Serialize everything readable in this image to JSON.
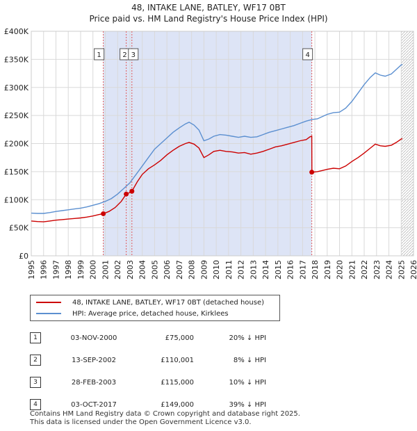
{
  "chart_data": {
    "type": "line",
    "title": "48, INTAKE LANE, BATLEY, WF17 0BT",
    "subtitle": "Price paid vs. HM Land Registry's House Price Index (HPI)",
    "xlabel": "",
    "ylabel": "",
    "xlim": [
      1995,
      2026
    ],
    "ylim": [
      0,
      400000
    ],
    "grid": true,
    "x_ticks": [
      1995,
      1996,
      1997,
      1998,
      1999,
      2000,
      2001,
      2002,
      2003,
      2004,
      2005,
      2006,
      2007,
      2008,
      2009,
      2010,
      2011,
      2012,
      2013,
      2014,
      2015,
      2016,
      2017,
      2018,
      2019,
      2020,
      2021,
      2022,
      2023,
      2024,
      2025,
      2026
    ],
    "y_ticks": [
      {
        "value": 0,
        "label": "£0"
      },
      {
        "value": 50000,
        "label": "£50K"
      },
      {
        "value": 100000,
        "label": "£100K"
      },
      {
        "value": 150000,
        "label": "£150K"
      },
      {
        "value": 200000,
        "label": "£200K"
      },
      {
        "value": 250000,
        "label": "£250K"
      },
      {
        "value": 300000,
        "label": "£300K"
      },
      {
        "value": 350000,
        "label": "£350K"
      },
      {
        "value": 400000,
        "label": "£400K"
      }
    ],
    "series": [
      {
        "name": "48, INTAKE LANE, BATLEY, WF17 0BT (detached house)",
        "color": "#cc0000",
        "points": [
          [
            1995.0,
            62000
          ],
          [
            1995.5,
            61000
          ],
          [
            1996.0,
            60500
          ],
          [
            1996.5,
            62000
          ],
          [
            1997.0,
            63500
          ],
          [
            1997.5,
            64500
          ],
          [
            1998.0,
            65500
          ],
          [
            1998.5,
            66500
          ],
          [
            1999.0,
            67500
          ],
          [
            1999.5,
            69000
          ],
          [
            2000.0,
            71000
          ],
          [
            2000.5,
            73500
          ],
          [
            2000.84,
            75000
          ],
          [
            2001.3,
            79000
          ],
          [
            2001.8,
            86000
          ],
          [
            2002.3,
            97000
          ],
          [
            2002.7,
            110001
          ],
          [
            2002.9,
            112000
          ],
          [
            2003.16,
            115000
          ],
          [
            2003.6,
            132000
          ],
          [
            2004.0,
            145000
          ],
          [
            2004.5,
            155000
          ],
          [
            2005.0,
            162000
          ],
          [
            2005.5,
            170000
          ],
          [
            2006.0,
            180000
          ],
          [
            2006.5,
            188000
          ],
          [
            2007.0,
            195000
          ],
          [
            2007.5,
            200000
          ],
          [
            2007.8,
            202000
          ],
          [
            2008.2,
            199000
          ],
          [
            2008.6,
            192000
          ],
          [
            2009.0,
            175000
          ],
          [
            2009.4,
            180000
          ],
          [
            2009.8,
            186000
          ],
          [
            2010.3,
            188000
          ],
          [
            2010.8,
            186000
          ],
          [
            2011.3,
            185000
          ],
          [
            2011.8,
            183000
          ],
          [
            2012.3,
            184000
          ],
          [
            2012.8,
            181000
          ],
          [
            2013.3,
            183000
          ],
          [
            2013.8,
            186000
          ],
          [
            2014.3,
            190000
          ],
          [
            2014.8,
            194000
          ],
          [
            2015.3,
            196000
          ],
          [
            2015.8,
            199000
          ],
          [
            2016.3,
            202000
          ],
          [
            2016.8,
            205000
          ],
          [
            2017.3,
            207000
          ],
          [
            2017.6,
            212000
          ],
          [
            2017.75,
            213000
          ],
          [
            2017.76,
            149000
          ],
          [
            2018.2,
            150000
          ],
          [
            2018.6,
            152000
          ],
          [
            2019.0,
            154000
          ],
          [
            2019.5,
            156000
          ],
          [
            2020.0,
            155000
          ],
          [
            2020.5,
            160000
          ],
          [
            2021.0,
            168000
          ],
          [
            2021.5,
            175000
          ],
          [
            2022.0,
            183000
          ],
          [
            2022.5,
            192000
          ],
          [
            2022.9,
            199000
          ],
          [
            2023.3,
            196000
          ],
          [
            2023.7,
            195000
          ],
          [
            2024.2,
            197000
          ],
          [
            2024.6,
            202000
          ],
          [
            2025.0,
            208000
          ],
          [
            2025.1,
            209000
          ]
        ]
      },
      {
        "name": "HPI: Average price, detached house, Kirklees",
        "color": "#5b8fd0",
        "points": [
          [
            1995.0,
            76000
          ],
          [
            1995.5,
            75500
          ],
          [
            1996.0,
            75500
          ],
          [
            1996.5,
            77000
          ],
          [
            1997.0,
            79000
          ],
          [
            1997.5,
            80500
          ],
          [
            1998.0,
            82000
          ],
          [
            1998.5,
            83500
          ],
          [
            1999.0,
            85000
          ],
          [
            1999.5,
            87000
          ],
          [
            2000.0,
            90000
          ],
          [
            2000.5,
            93000
          ],
          [
            2001.0,
            97000
          ],
          [
            2001.5,
            102000
          ],
          [
            2002.0,
            110000
          ],
          [
            2002.5,
            120000
          ],
          [
            2003.0,
            130000
          ],
          [
            2003.5,
            145000
          ],
          [
            2004.0,
            160000
          ],
          [
            2004.5,
            175000
          ],
          [
            2005.0,
            190000
          ],
          [
            2005.5,
            200000
          ],
          [
            2006.0,
            210000
          ],
          [
            2006.5,
            220000
          ],
          [
            2007.0,
            228000
          ],
          [
            2007.5,
            235000
          ],
          [
            2007.8,
            238000
          ],
          [
            2008.2,
            233000
          ],
          [
            2008.6,
            224000
          ],
          [
            2009.0,
            205000
          ],
          [
            2009.4,
            208000
          ],
          [
            2009.8,
            213000
          ],
          [
            2010.3,
            216000
          ],
          [
            2010.8,
            215000
          ],
          [
            2011.3,
            213000
          ],
          [
            2011.8,
            211000
          ],
          [
            2012.3,
            213000
          ],
          [
            2012.8,
            211000
          ],
          [
            2013.3,
            212000
          ],
          [
            2013.8,
            216000
          ],
          [
            2014.3,
            220000
          ],
          [
            2014.8,
            223000
          ],
          [
            2015.3,
            226000
          ],
          [
            2015.8,
            229000
          ],
          [
            2016.3,
            232000
          ],
          [
            2016.8,
            236000
          ],
          [
            2017.3,
            240000
          ],
          [
            2017.8,
            243000
          ],
          [
            2018.2,
            244000
          ],
          [
            2018.6,
            248000
          ],
          [
            2019.0,
            252000
          ],
          [
            2019.5,
            255000
          ],
          [
            2020.0,
            256000
          ],
          [
            2020.5,
            263000
          ],
          [
            2021.0,
            275000
          ],
          [
            2021.5,
            290000
          ],
          [
            2022.0,
            305000
          ],
          [
            2022.5,
            318000
          ],
          [
            2022.9,
            326000
          ],
          [
            2023.3,
            322000
          ],
          [
            2023.7,
            320000
          ],
          [
            2024.2,
            324000
          ],
          [
            2024.6,
            332000
          ],
          [
            2025.0,
            340000
          ],
          [
            2025.1,
            341000
          ]
        ]
      }
    ],
    "sales": [
      {
        "label": "1",
        "year": 2000.84,
        "price": 75000,
        "date": "03-NOV-2000",
        "price_text": "£75,000",
        "hpi_text": "20% ↓ HPI"
      },
      {
        "label": "2",
        "year": 2002.7,
        "price": 110001,
        "date": "13-SEP-2002",
        "price_text": "£110,001",
        "hpi_text": "8% ↓ HPI"
      },
      {
        "label": "3",
        "year": 2003.16,
        "price": 115000,
        "date": "28-FEB-2003",
        "price_text": "£115,000",
        "hpi_text": "10% ↓ HPI"
      },
      {
        "label": "4",
        "year": 2017.75,
        "price": 149000,
        "date": "03-OCT-2017",
        "price_text": "£149,000",
        "hpi_text": "39% ↓ HPI"
      }
    ],
    "shaded_ranges": [
      [
        2000.84,
        2017.75
      ]
    ],
    "future_from": 2025.0
  },
  "legend": {
    "property_label": "48, INTAKE LANE, BATLEY, WF17 0BT (detached house)",
    "hpi_label": "HPI: Average price, detached house, Kirklees"
  },
  "footer": {
    "line1": "Contains HM Land Registry data © Crown copyright and database right 2025.",
    "line2": "This data is licensed under the Open Government Licence v3.0."
  }
}
